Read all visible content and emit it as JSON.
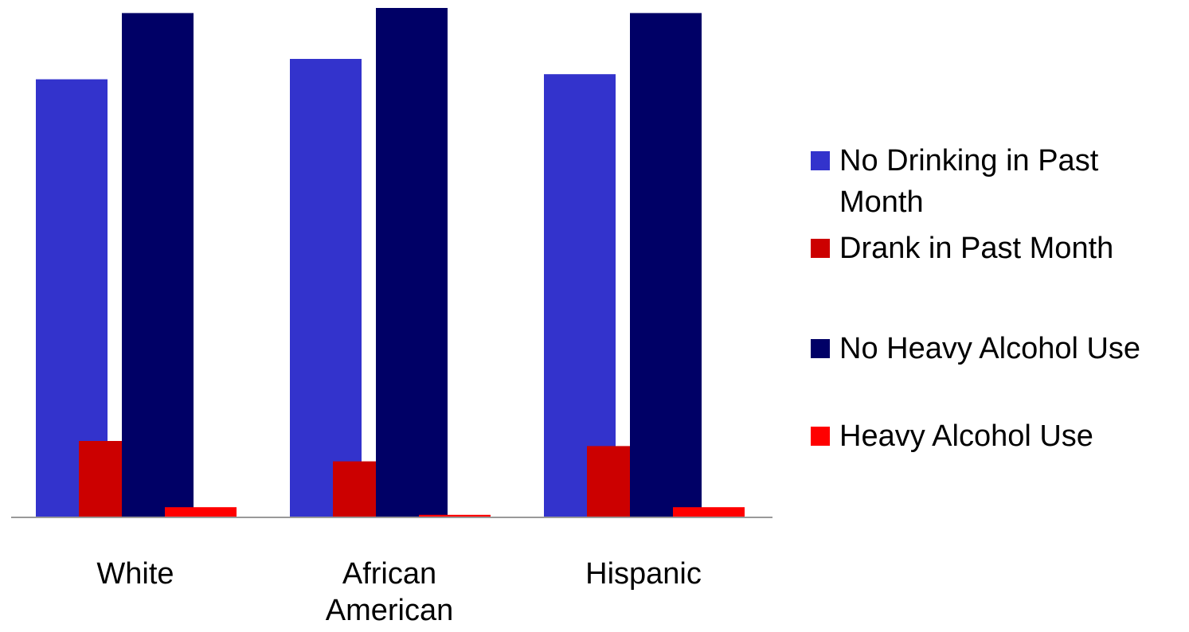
{
  "chart_data": {
    "type": "bar",
    "categories": [
      "White",
      "African American",
      "Hispanic"
    ],
    "series": [
      {
        "name": "No Drinking in Past Month",
        "color": "#3333CC",
        "values": [
          86,
          90,
          87
        ]
      },
      {
        "name": "Drank in Past Month",
        "color": "#CC0000",
        "values": [
          15,
          11,
          14
        ]
      },
      {
        "name": "No Heavy Alcohol Use",
        "color": "#000066",
        "values": [
          99,
          100,
          99
        ]
      },
      {
        "name": "Heavy Alcohol Use",
        "color": "#FF0000",
        "values": [
          2,
          0.5,
          2
        ]
      }
    ],
    "ylim": [
      0,
      100
    ],
    "title": "",
    "xlabel": "",
    "ylabel": "",
    "grid": false,
    "legend_position": "right"
  }
}
